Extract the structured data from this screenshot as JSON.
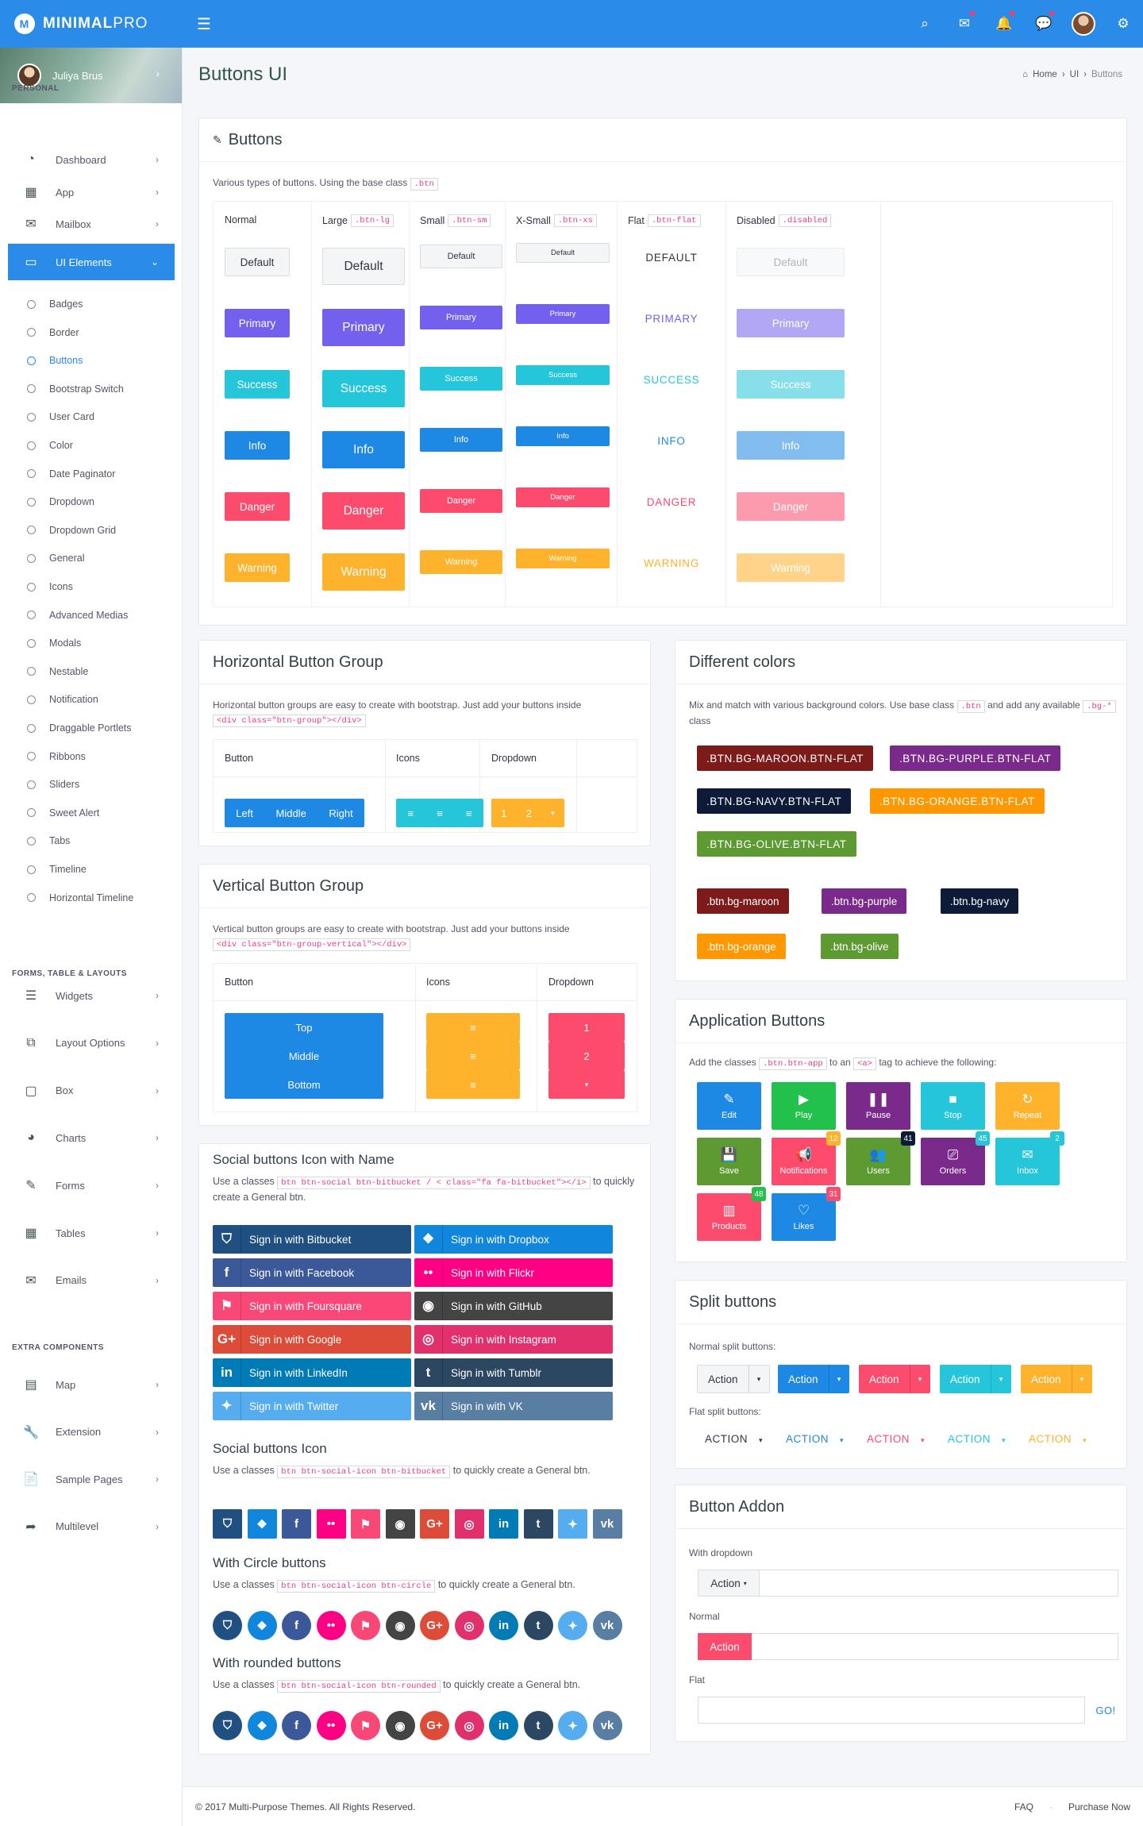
{
  "brand": {
    "name_bold": "MINIMAL",
    "name_light": "PRO",
    "logo_letter": "M"
  },
  "topbar": {
    "icons": [
      "search-icon",
      "mail-icon",
      "bell-icon",
      "chat-icon",
      "avatar",
      "gear-icon"
    ]
  },
  "user": {
    "name": "Juliya Brus"
  },
  "sidebar": {
    "section_personal": "PERSONAL",
    "menu1": [
      {
        "label": "Dashboard",
        "icon": "dashboard-icon"
      },
      {
        "label": "App",
        "icon": "grid-icon"
      },
      {
        "label": "Mailbox",
        "icon": "mail-icon"
      },
      {
        "label": "UI Elements",
        "icon": "laptop-icon"
      }
    ],
    "submenu": [
      "Badges",
      "Border",
      "Buttons",
      "Bootstrap Switch",
      "User Card",
      "Color",
      "Date Paginator",
      "Dropdown",
      "Dropdown Grid",
      "General",
      "Icons",
      "Advanced Medias",
      "Modals",
      "Nestable",
      "Notification",
      "Draggable Portlets",
      "Ribbons",
      "Sliders",
      "Sweet Alert",
      "Tabs",
      "Timeline",
      "Horizontal Timeline"
    ],
    "section_forms": "FORMS, TABLE & LAYOUTS",
    "menu2": [
      {
        "label": "Widgets"
      },
      {
        "label": "Layout Options"
      },
      {
        "label": "Box"
      },
      {
        "label": "Charts"
      },
      {
        "label": "Forms"
      },
      {
        "label": "Tables"
      },
      {
        "label": "Emails"
      }
    ],
    "section_extra": "EXTRA COMPONENTS",
    "menu3": [
      {
        "label": "Map"
      },
      {
        "label": "Extension"
      },
      {
        "label": "Sample Pages"
      },
      {
        "label": "Multilevel"
      }
    ]
  },
  "page": {
    "title": "Buttons UI",
    "breadcrumb": {
      "home": "Home",
      "ui": "UI",
      "current": "Buttons"
    }
  },
  "buttons": {
    "title": "Buttons",
    "desc": "Various types of buttons. Using the base class",
    "desc_code": ".btn",
    "headers": [
      {
        "t": "Normal",
        "c": ""
      },
      {
        "t": "Large",
        "c": ".btn-lg"
      },
      {
        "t": "Small",
        "c": ".btn-sm"
      },
      {
        "t": "X-Small",
        "c": ".btn-xs"
      },
      {
        "t": "Flat",
        "c": ".btn-flat"
      },
      {
        "t": "Disabled",
        "c": ".disabled"
      }
    ],
    "rows": [
      {
        "label": "Default",
        "flat": "DEFAULT"
      },
      {
        "label": "Primary",
        "flat": "PRIMARY"
      },
      {
        "label": "Success",
        "flat": "SUCCESS"
      },
      {
        "label": "Info",
        "flat": "INFO"
      },
      {
        "label": "Danger",
        "flat": "DANGER"
      },
      {
        "label": "Warning",
        "flat": "WARNING"
      }
    ],
    "colors": [
      "#f4f5f6",
      "#7460ee",
      "#26c6da",
      "#1e88e5",
      "#fc4b6c",
      "#ffb22b"
    ]
  },
  "hgroup": {
    "title": "Horizontal Button Group",
    "desc": "Horizontal button groups are easy to create with bootstrap. Just add your buttons inside",
    "code": "<div class=\"btn-group\"></div>",
    "heads": [
      "Button",
      "Icons",
      "Dropdown"
    ],
    "btns": [
      "Left",
      "Middle",
      "Right"
    ],
    "dd": [
      "1",
      "2"
    ]
  },
  "vgroup": {
    "title": "Vertical Button Group",
    "desc": "Vertical button groups are easy to create with bootstrap. Just add your buttons inside",
    "code": "<div class=\"btn-group-vertical\"></div>",
    "heads": [
      "Button",
      "Icons",
      "Dropdown"
    ],
    "btns": [
      "Top",
      "Middle",
      "Bottom"
    ],
    "dd": [
      "1",
      "2"
    ]
  },
  "social": {
    "title": "Social buttons Icon with Name",
    "desc_a": "Use a classes",
    "code": "btn btn-social btn-bitbucket / < class=\"fa fa-bitbucket\"></i>",
    "desc_b": "to quickly create a General btn.",
    "left": [
      {
        "label": "Sign in with Bitbucket",
        "color": "#205081",
        "g": "⛉"
      },
      {
        "label": "Sign in with Facebook",
        "color": "#3b5998",
        "g": "f"
      },
      {
        "label": "Sign in with Foursquare",
        "color": "#f94877",
        "g": "⚑"
      },
      {
        "label": "Sign in with Google",
        "color": "#dd4b39",
        "g": "G+"
      },
      {
        "label": "Sign in with LinkedIn",
        "color": "#007bb6",
        "g": "in"
      },
      {
        "label": "Sign in with Twitter",
        "color": "#55acee",
        "g": "✦"
      }
    ],
    "right": [
      {
        "label": "Sign in with Dropbox",
        "color": "#1087dd",
        "g": "❖"
      },
      {
        "label": "Sign in with Flickr",
        "color": "#ff0084",
        "g": "••"
      },
      {
        "label": "Sign in with GitHub",
        "color": "#444444",
        "g": "◉"
      },
      {
        "label": "Sign in with Instagram",
        "color": "#e1306c",
        "g": "◎"
      },
      {
        "label": "Sign in with Tumblr",
        "color": "#2c4762",
        "g": "t"
      },
      {
        "label": "Sign in with VK",
        "color": "#587ea3",
        "g": "vk"
      }
    ],
    "icon_title": "Social buttons Icon",
    "icon_desc_a": "Use a classes",
    "icon_code": "btn btn-social-icon btn-bitbucket",
    "icon_desc_b": "to quickly create a General btn.",
    "circle_title": "With Circle buttons",
    "circle_desc_a": "Use a classes",
    "circle_code": "btn btn-social-icon btn-circle",
    "circle_desc_b": "to quickly create a General btn.",
    "round_title": "With rounded buttons",
    "round_desc_a": "Use a classes",
    "round_code": "btn btn-social-icon btn-rounded",
    "round_desc_b": "to quickly create a General btn.",
    "icons": [
      {
        "g": "⛉",
        "c": "#205081"
      },
      {
        "g": "❖",
        "c": "#1087dd"
      },
      {
        "g": "f",
        "c": "#3b5998"
      },
      {
        "g": "••",
        "c": "#ff0084"
      },
      {
        "g": "⚑",
        "c": "#f94877"
      },
      {
        "g": "◉",
        "c": "#444444"
      },
      {
        "g": "G+",
        "c": "#dd4b39"
      },
      {
        "g": "◎",
        "c": "#e1306c"
      },
      {
        "g": "in",
        "c": "#007bb6"
      },
      {
        "g": "t",
        "c": "#2c4762"
      },
      {
        "g": "✦",
        "c": "#55acee"
      },
      {
        "g": "vk",
        "c": "#587ea3"
      }
    ]
  },
  "colors": {
    "title": "Different colors",
    "desc_a": "Mix and match with various background colors. Use base class",
    "code1": ".btn",
    "desc_b": "and add any available",
    "code2": ".bg-*",
    "desc_c": "class",
    "flat": [
      {
        "t": ".BTN.BG-MAROON.BTN-FLAT",
        "c": "#7d1a1a"
      },
      {
        "t": ".BTN.BG-PURPLE.BTN-FLAT",
        "c": "#7a2a8a"
      },
      {
        "t": ".BTN.BG-NAVY.BTN-FLAT",
        "c": "#0d1b38"
      },
      {
        "t": ".BTN.BG-ORANGE.BTN-FLAT",
        "c": "#ff9800"
      },
      {
        "t": ".BTN.BG-OLIVE.BTN-FLAT",
        "c": "#5d9a32"
      }
    ],
    "normal": [
      {
        "t": ".btn.bg-maroon",
        "c": "#7d1a1a"
      },
      {
        "t": ".btn.bg-purple",
        "c": "#7a2a8a"
      },
      {
        "t": ".btn.bg-navy",
        "c": "#0d1b38"
      },
      {
        "t": ".btn.bg-orange",
        "c": "#ff9800"
      },
      {
        "t": ".btn.bg-olive",
        "c": "#5d9a32"
      }
    ]
  },
  "app": {
    "title": "Application Buttons",
    "desc_a": "Add the classes",
    "code1": ".btn.btn-app",
    "desc_b": "to an",
    "code2": "<a>",
    "desc_c": "tag to achieve the following:",
    "items": [
      {
        "t": "Edit",
        "g": "✎",
        "c": "#1e88e5",
        "b": ""
      },
      {
        "t": "Play",
        "g": "▶",
        "c": "#21c14c",
        "b": ""
      },
      {
        "t": "Pause",
        "g": "❚❚",
        "c": "#7a2a8a",
        "b": ""
      },
      {
        "t": "Stop",
        "g": "■",
        "c": "#26c6da",
        "b": ""
      },
      {
        "t": "Repeat",
        "g": "↻",
        "c": "#ffb22b",
        "b": ""
      },
      {
        "t": "Save",
        "g": "💾",
        "c": "#5d9a32",
        "b": ""
      },
      {
        "t": "Notifications",
        "g": "📢",
        "c": "#fc4b6c",
        "b": "12",
        "bc": "#ffb22b"
      },
      {
        "t": "Users",
        "g": "👥",
        "c": "#5d9a32",
        "b": "41",
        "bc": "#0d1b38"
      },
      {
        "t": "Orders",
        "g": "⎚",
        "c": "#7a2a8a",
        "b": "45",
        "bc": "#26c6da"
      },
      {
        "t": "Inbox",
        "g": "✉",
        "c": "#26c6da",
        "b": "2",
        "bc": "#26c6da"
      },
      {
        "t": "Products",
        "g": "▥",
        "c": "#fc4b6c",
        "b": "48",
        "bc": "#21c14c"
      },
      {
        "t": "Likes",
        "g": "♡",
        "c": "#1e88e5",
        "b": "31",
        "bc": "#fc4b6c"
      }
    ]
  },
  "split": {
    "title": "Split buttons",
    "normal_label": "Normal split buttons:",
    "flat_label": "Flat split buttons:",
    "action": "Action",
    "flat_action": "ACTION",
    "colors": [
      "#f4f5f6",
      "#1e88e5",
      "#fc4b6c",
      "#26c6da",
      "#ffb22b"
    ]
  },
  "addon": {
    "title": "Button Addon",
    "dropdown_label": "With dropdown",
    "normal_label": "Normal",
    "flat_label": "Flat",
    "action": "Action",
    "go": "GO!"
  },
  "footer": {
    "copy": "© 2017 Multi-Purpose Themes. All Rights Reserved.",
    "faq": "FAQ",
    "purchase": "Purchase Now"
  }
}
